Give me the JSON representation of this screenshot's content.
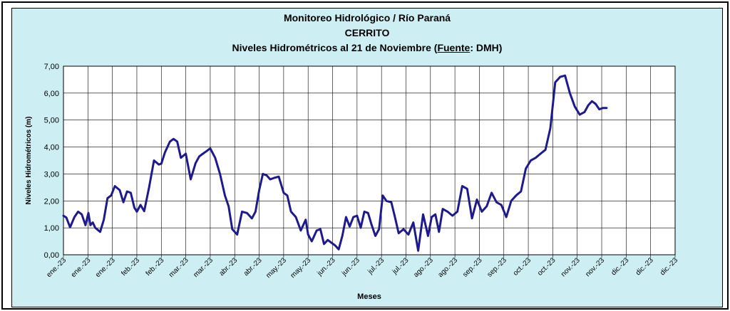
{
  "chart_data": {
    "type": "line",
    "title_lines": [
      "Monitoreo Hidrológico / Río Paraná",
      "CERRITO"
    ],
    "subtitle_prefix": "Niveles Hidrométricos al 21 de Noviembre (",
    "subtitle_source_label": "Fuente",
    "subtitle_suffix": ": DMH)",
    "xlabel": "Meses",
    "ylabel": "Niveles Hidrométricos (m)",
    "ylim": [
      0,
      7
    ],
    "yticks": [
      "0,00",
      "1,00",
      "2,00",
      "3,00",
      "4,00",
      "5,00",
      "6,00",
      "7,00"
    ],
    "xticks": [
      "ene.-23",
      "ene.-23",
      "ene.-23",
      "feb.-23",
      "feb.-23",
      "mar.-23",
      "mar.-23",
      "abr.-23",
      "abr.-23",
      "may.-23",
      "may.-23",
      "jun.-23",
      "jun.-23",
      "jul.-23",
      "jul.-23",
      "ago.-23",
      "ago.-23",
      "sep.-23",
      "sep.-23",
      "oct.-23",
      "oct.-23",
      "nov.-23",
      "nov.-23",
      "dic.-23",
      "dic.-23",
      "dic.-23"
    ],
    "grid": true,
    "line_color": "#1f1a8c",
    "series": [
      {
        "x": [
          0.0,
          0.12,
          0.27,
          0.45,
          0.6,
          0.75,
          0.9,
          1.02,
          1.1,
          1.2,
          1.3,
          1.5,
          1.65,
          1.8,
          1.95,
          2.1,
          2.3,
          2.45,
          2.6,
          2.75,
          2.9,
          3.0,
          3.15,
          3.3,
          3.5,
          3.7,
          3.9,
          4.0,
          4.15,
          4.35,
          4.5,
          4.65,
          4.8,
          5.0,
          5.2,
          5.4,
          5.55,
          5.7,
          5.85,
          6.0,
          6.2,
          6.4,
          6.6,
          6.75,
          6.9,
          7.1,
          7.3,
          7.5,
          7.7,
          7.85,
          8.0,
          8.15,
          8.3,
          8.45,
          8.6,
          8.8,
          9.0,
          9.15,
          9.3,
          9.5,
          9.7,
          9.9,
          10.0,
          10.15,
          10.35,
          10.5,
          10.65,
          10.8,
          10.95,
          11.1,
          11.25,
          11.4,
          11.55,
          11.7,
          11.85,
          12.0,
          12.15,
          12.3,
          12.45,
          12.6,
          12.75,
          12.9,
          13.05,
          13.2,
          13.4,
          13.55,
          13.7,
          13.9,
          14.1,
          14.3,
          14.5,
          14.7,
          14.9,
          15.05,
          15.2,
          15.35,
          15.5,
          15.7,
          15.9,
          16.1,
          16.3,
          16.5,
          16.7,
          16.9,
          17.1,
          17.3,
          17.5,
          17.7,
          17.9,
          18.1,
          18.3,
          18.5,
          18.7,
          18.9,
          19.1,
          19.3,
          19.5,
          19.7,
          19.9,
          20.1,
          20.3,
          20.5,
          20.7,
          20.9,
          21.1,
          21.3,
          21.45,
          21.6,
          21.75,
          21.9,
          22.05,
          22.2
        ],
        "values": [
          1.45,
          1.38,
          1.02,
          1.4,
          1.6,
          1.5,
          1.1,
          1.55,
          1.1,
          1.2,
          1.0,
          0.85,
          1.3,
          2.1,
          2.2,
          2.55,
          2.4,
          1.95,
          2.35,
          2.3,
          1.75,
          1.6,
          1.85,
          1.62,
          2.5,
          3.5,
          3.35,
          3.38,
          3.8,
          4.2,
          4.3,
          4.2,
          3.6,
          3.75,
          2.8,
          3.4,
          3.65,
          3.75,
          3.85,
          3.95,
          3.6,
          3.0,
          2.2,
          1.8,
          0.95,
          0.75,
          1.6,
          1.55,
          1.35,
          1.6,
          2.4,
          3.0,
          2.95,
          2.8,
          2.85,
          2.9,
          2.3,
          2.2,
          1.6,
          1.4,
          0.9,
          1.3,
          0.75,
          0.5,
          0.9,
          0.95,
          0.4,
          0.55,
          0.45,
          0.35,
          0.2,
          0.7,
          1.4,
          1.05,
          1.4,
          1.45,
          1.0,
          1.6,
          1.55,
          1.1,
          0.7,
          0.95,
          2.2,
          2.0,
          1.95,
          1.4,
          0.8,
          0.95,
          0.75,
          1.2,
          0.15,
          1.5,
          0.7,
          1.4,
          1.5,
          0.85,
          1.7,
          1.6,
          1.45,
          1.6,
          2.55,
          2.45,
          1.35,
          2.05,
          1.6,
          1.8,
          2.3,
          1.95,
          1.85,
          1.4,
          2.0,
          2.2,
          2.35,
          3.2,
          3.5,
          3.6,
          3.75,
          3.9,
          4.7,
          6.4,
          6.6,
          6.65,
          6.0,
          5.5,
          5.2,
          5.3,
          5.55,
          5.7,
          5.6,
          5.4,
          5.45,
          5.45
        ]
      }
    ]
  }
}
